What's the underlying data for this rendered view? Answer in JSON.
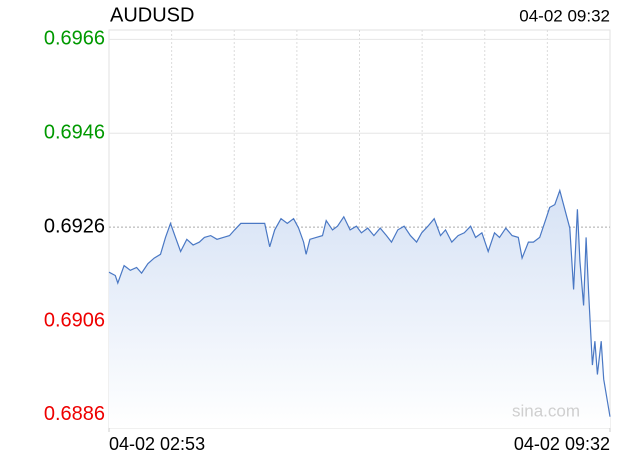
{
  "chart_data": {
    "type": "line",
    "title": "AUDUSD",
    "timestamp": "04-02 09:32",
    "watermark": "sina.com",
    "color": "#4a78c4",
    "up_color": "#009900",
    "down_color": "#ee0000",
    "reference": 0.6926,
    "x_divisions": 8,
    "grid": true,
    "xlim": [
      0,
      399
    ],
    "xticks": [
      {
        "value": 0,
        "label": "04-02 02:53"
      },
      {
        "value": 399,
        "label": "04-02 09:32"
      }
    ],
    "ylim": [
      0.68832,
      0.6968
    ],
    "yticks": [
      0.6966,
      0.6946,
      0.6926,
      0.6906,
      0.6886
    ],
    "x": [
      0,
      5,
      7,
      12,
      17,
      22,
      26,
      31,
      36,
      41,
      45,
      49,
      53,
      57,
      62,
      67,
      72,
      76,
      81,
      86,
      91,
      96,
      100,
      105,
      110,
      115,
      119,
      124,
      128,
      132,
      137,
      142,
      147,
      151,
      155,
      157,
      160,
      165,
      170,
      173,
      178,
      182,
      187,
      192,
      197,
      201,
      206,
      211,
      216,
      221,
      225,
      230,
      235,
      240,
      245,
      249,
      254,
      259,
      264,
      268,
      273,
      278,
      283,
      288,
      292,
      297,
      302,
      307,
      311,
      316,
      321,
      326,
      329,
      334,
      338,
      343,
      348,
      351,
      355,
      359,
      363,
      367,
      370,
      373,
      375,
      378,
      380,
      382,
      385,
      387,
      389,
      392,
      394,
      399
    ],
    "values": [
      0.69164,
      0.69157,
      0.69141,
      0.69178,
      0.69168,
      0.69174,
      0.69162,
      0.69182,
      0.69194,
      0.69202,
      0.69238,
      0.69268,
      0.69238,
      0.69208,
      0.69234,
      0.69222,
      0.69228,
      0.69238,
      0.69242,
      0.69234,
      0.69238,
      0.69242,
      0.69254,
      0.69268,
      0.69268,
      0.69268,
      0.69268,
      0.69268,
      0.69218,
      0.69254,
      0.69278,
      0.69268,
      0.69278,
      0.69258,
      0.69228,
      0.69202,
      0.69234,
      0.69238,
      0.69242,
      0.69274,
      0.69254,
      0.69262,
      0.69282,
      0.69254,
      0.69262,
      0.69248,
      0.69258,
      0.69242,
      0.69258,
      0.69242,
      0.69228,
      0.69254,
      0.69262,
      0.69242,
      0.69228,
      0.69248,
      0.69262,
      0.69278,
      0.69242,
      0.69254,
      0.69228,
      0.69242,
      0.69248,
      0.69262,
      0.69238,
      0.69248,
      0.69208,
      0.69248,
      0.69238,
      0.69258,
      0.69242,
      0.69238,
      0.69194,
      0.69228,
      0.69228,
      0.69238,
      0.69278,
      0.69302,
      0.69308,
      0.69338,
      0.69298,
      0.69258,
      0.69127,
      0.69298,
      0.69188,
      0.69093,
      0.69238,
      0.69117,
      0.68966,
      0.69017,
      0.68946,
      0.69017,
      0.68936,
      0.68856
    ]
  }
}
